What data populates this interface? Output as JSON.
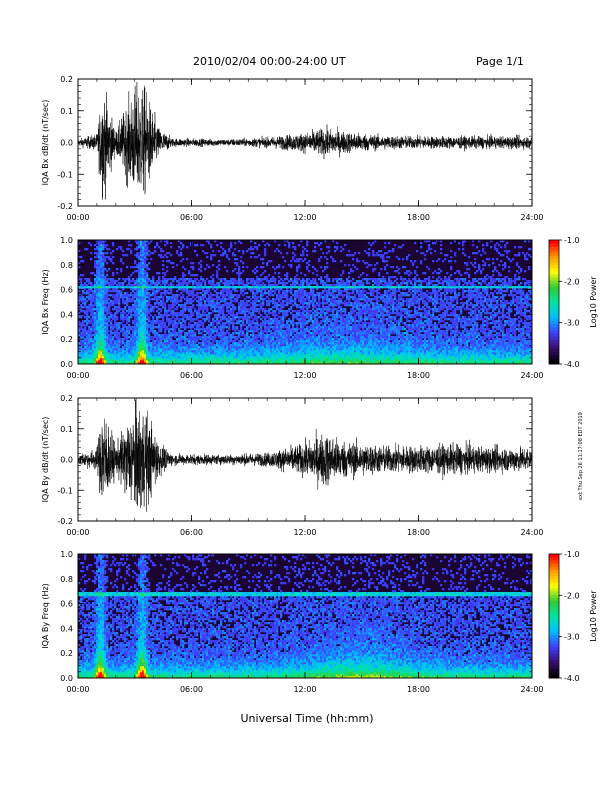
{
  "header": {
    "date_range": "2010/02/04  00:00-24:00 UT",
    "page": "Page 1/1"
  },
  "footer": {
    "xlabel": "Universal Time (hh:mm)"
  },
  "side_note": "ext Thu Sep 26 11:17:08 EDT 2019",
  "colorbar": {
    "label": "Log10 Power",
    "ticks": [
      "-1.0",
      "-2.0",
      "-3.0",
      "-4.0"
    ],
    "range": [
      -4.0,
      -1.0
    ],
    "colors": [
      "#000000",
      "#3b0f70",
      "#3f3fff",
      "#00bfff",
      "#00e5a0",
      "#33cc33",
      "#ffff00",
      "#ff9900",
      "#ff0000"
    ]
  },
  "chart_data": [
    {
      "type": "line",
      "title": "",
      "ylabel": "IQA Bx dB/dt (nT/sec)",
      "xlim": [
        0,
        24
      ],
      "ylim": [
        -0.2,
        0.2
      ],
      "xticks": [
        "00:00",
        "06:00",
        "12:00",
        "18:00",
        "24:00"
      ],
      "yticks": [
        "0.2",
        "0.1",
        "0.0",
        "-0.1",
        "-0.2"
      ],
      "x": [
        0,
        1,
        1.3,
        2,
        3,
        3.5,
        4.3,
        5,
        8,
        10,
        12,
        13,
        14,
        16,
        18,
        20,
        22,
        24
      ],
      "envelope": [
        0.012,
        0.03,
        0.2,
        0.04,
        0.2,
        0.2,
        0.05,
        0.015,
        0.012,
        0.018,
        0.035,
        0.05,
        0.04,
        0.025,
        0.022,
        0.022,
        0.022,
        0.022
      ]
    },
    {
      "type": "heatmap",
      "title": "",
      "ylabel": "IQA Bx Freq (Hz)",
      "xlim": [
        0,
        24
      ],
      "ylim": [
        0.0,
        1.0
      ],
      "xticks": [
        "00:00",
        "06:00",
        "12:00",
        "18:00",
        "24:00"
      ],
      "yticks": [
        "1.0",
        "0.8",
        "0.6",
        "0.4",
        "0.2",
        "0.0"
      ],
      "z_units": "Log10 Power",
      "z_range": [
        -4.0,
        -1.0
      ],
      "features": [
        {
          "kind": "line",
          "freq": 0.62,
          "log_power": -3.0
        },
        {
          "kind": "burst",
          "time": 1.2,
          "log_power": -1.6
        },
        {
          "kind": "burst",
          "time": 3.4,
          "log_power": -1.7
        }
      ]
    },
    {
      "type": "line",
      "title": "",
      "ylabel": "IQA By dB/dt (nT/sec)",
      "xlim": [
        0,
        24
      ],
      "ylim": [
        -0.2,
        0.2
      ],
      "xticks": [
        "00:00",
        "06:00",
        "12:00",
        "18:00",
        "24:00"
      ],
      "yticks": [
        "0.2",
        "0.1",
        "0.0",
        "-0.1",
        "-0.2"
      ],
      "x": [
        0,
        1,
        1.3,
        2,
        3,
        3.5,
        4.3,
        5,
        8,
        10,
        12,
        13,
        14,
        16,
        18,
        20,
        22,
        24
      ],
      "envelope": [
        0.02,
        0.04,
        0.2,
        0.05,
        0.2,
        0.2,
        0.06,
        0.02,
        0.018,
        0.025,
        0.06,
        0.1,
        0.07,
        0.05,
        0.05,
        0.055,
        0.045,
        0.045
      ]
    },
    {
      "type": "heatmap",
      "title": "",
      "ylabel": "IQA By Freq (Hz)",
      "xlim": [
        0,
        24
      ],
      "ylim": [
        0.0,
        1.0
      ],
      "xticks": [
        "00:00",
        "06:00",
        "12:00",
        "18:00",
        "24:00"
      ],
      "yticks": [
        "1.0",
        "0.8",
        "0.6",
        "0.4",
        "0.2",
        "0.0"
      ],
      "z_units": "Log10 Power",
      "z_range": [
        -4.0,
        -1.0
      ],
      "features": [
        {
          "kind": "line",
          "freq": 0.68,
          "log_power": -3.3
        },
        {
          "kind": "burst",
          "time": 1.2,
          "log_power": -1.6
        },
        {
          "kind": "burst",
          "time": 3.4,
          "log_power": -1.6
        }
      ]
    }
  ]
}
